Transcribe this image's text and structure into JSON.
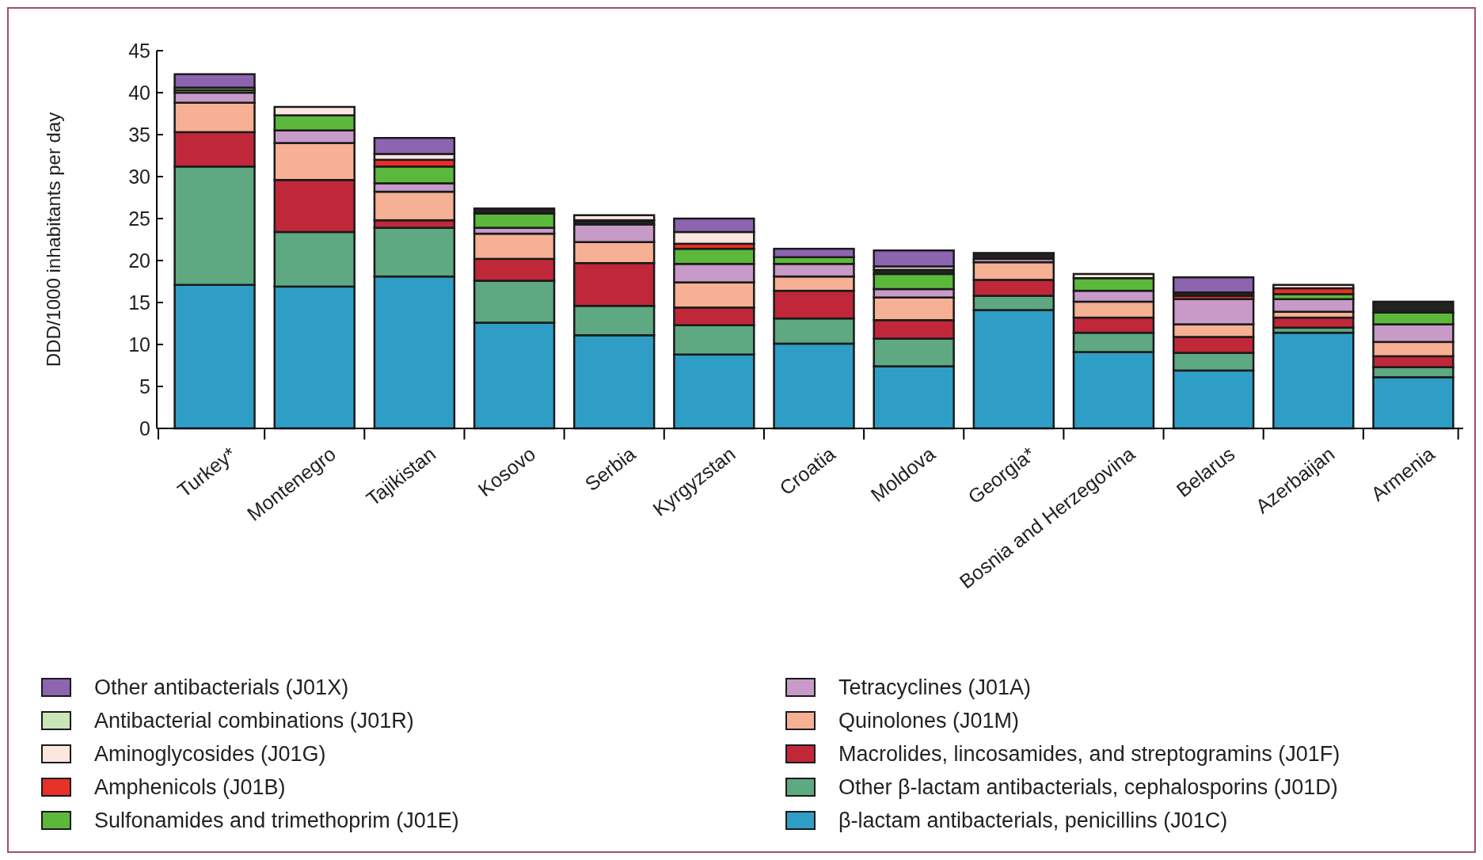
{
  "chart_data": {
    "type": "bar",
    "stacked": true,
    "ylabel": "DDD/1000 inhabitants per day",
    "categories": [
      "Turkey*",
      "Montenegro",
      "Tajikistan",
      "Kosovo",
      "Serbia",
      "Kyrgyzstan",
      "Croatia",
      "Moldova",
      "Georgia*",
      "Bosnia and Herzegovina",
      "Belarus",
      "Azerbaijan",
      "Armenia"
    ],
    "series": [
      {
        "name": "β-lactam antibacterials, penicillins (J01C)",
        "color": "#2e9ec6",
        "values": [
          17.1,
          16.9,
          18.1,
          12.6,
          11.1,
          8.8,
          10.1,
          7.4,
          14.1,
          9.1,
          6.9,
          11.4,
          6.1
        ]
      },
      {
        "name": "Other β-lactam antibacterials, cephalosporins (J01D)",
        "color": "#5ea882",
        "values": [
          14.1,
          6.5,
          5.8,
          5.0,
          3.5,
          3.5,
          3.0,
          3.3,
          1.7,
          2.3,
          2.1,
          0.6,
          1.2
        ]
      },
      {
        "name": "Macrolides, lincosamides, and streptogramins (J01F)",
        "color": "#c0283a",
        "values": [
          4.1,
          6.2,
          0.9,
          2.6,
          5.1,
          2.1,
          3.3,
          2.2,
          1.9,
          1.8,
          1.9,
          1.2,
          1.3
        ]
      },
      {
        "name": "Quinolones (J01M)",
        "color": "#f6b093",
        "values": [
          3.5,
          4.4,
          3.4,
          3.0,
          2.5,
          3.0,
          1.7,
          2.7,
          2.1,
          1.9,
          1.5,
          0.7,
          1.7
        ]
      },
      {
        "name": "Tetracyclines (J01A)",
        "color": "#c89ac8",
        "values": [
          1.2,
          1.5,
          1.0,
          0.7,
          2.1,
          2.2,
          1.5,
          1.0,
          0.4,
          1.3,
          3.0,
          1.5,
          2.1
        ]
      },
      {
        "name": "Sulfonamides and trimethoprim (J01E)",
        "color": "#5cb83a",
        "values": [
          0.3,
          1.8,
          2.0,
          1.7,
          null,
          1.8,
          0.8,
          1.8,
          null,
          1.5,
          null,
          0.6,
          1.4
        ]
      },
      {
        "name": "Amphenicols (J01B)",
        "color": "#e8302a",
        "values": [
          null,
          null,
          0.8,
          null,
          null,
          0.6,
          null,
          null,
          null,
          null,
          0.4,
          0.7,
          null
        ]
      },
      {
        "color": "#222222",
        "values": [
          null,
          null,
          null,
          0.6,
          0.5,
          null,
          null,
          0.5,
          0.7,
          null,
          0.4,
          null,
          1.3
        ]
      },
      {
        "name": "Aminoglycosides (J01G)",
        "color": "#fbe6e0",
        "values": [
          null,
          1.0,
          0.7,
          null,
          0.6,
          1.4,
          null,
          0.4,
          null,
          0.5,
          null,
          0.4,
          null
        ]
      },
      {
        "name": "Antibacterial combinations (J01R)",
        "color": "#c8e6b8",
        "values": [
          0.3,
          null,
          null,
          null,
          null,
          null,
          null,
          null,
          null,
          null,
          null,
          null,
          null
        ]
      },
      {
        "name": "Other antibacterials (J01X)",
        "color": "#8c64b0",
        "values": [
          1.6,
          null,
          1.9,
          null,
          null,
          1.6,
          1.0,
          1.9,
          null,
          null,
          1.8,
          null,
          null
        ]
      }
    ],
    "ylim": [
      0,
      45
    ],
    "yticks": [
      0,
      5,
      10,
      15,
      20,
      25,
      30,
      35,
      40,
      45
    ],
    "grid": false,
    "legend": "bottom"
  }
}
